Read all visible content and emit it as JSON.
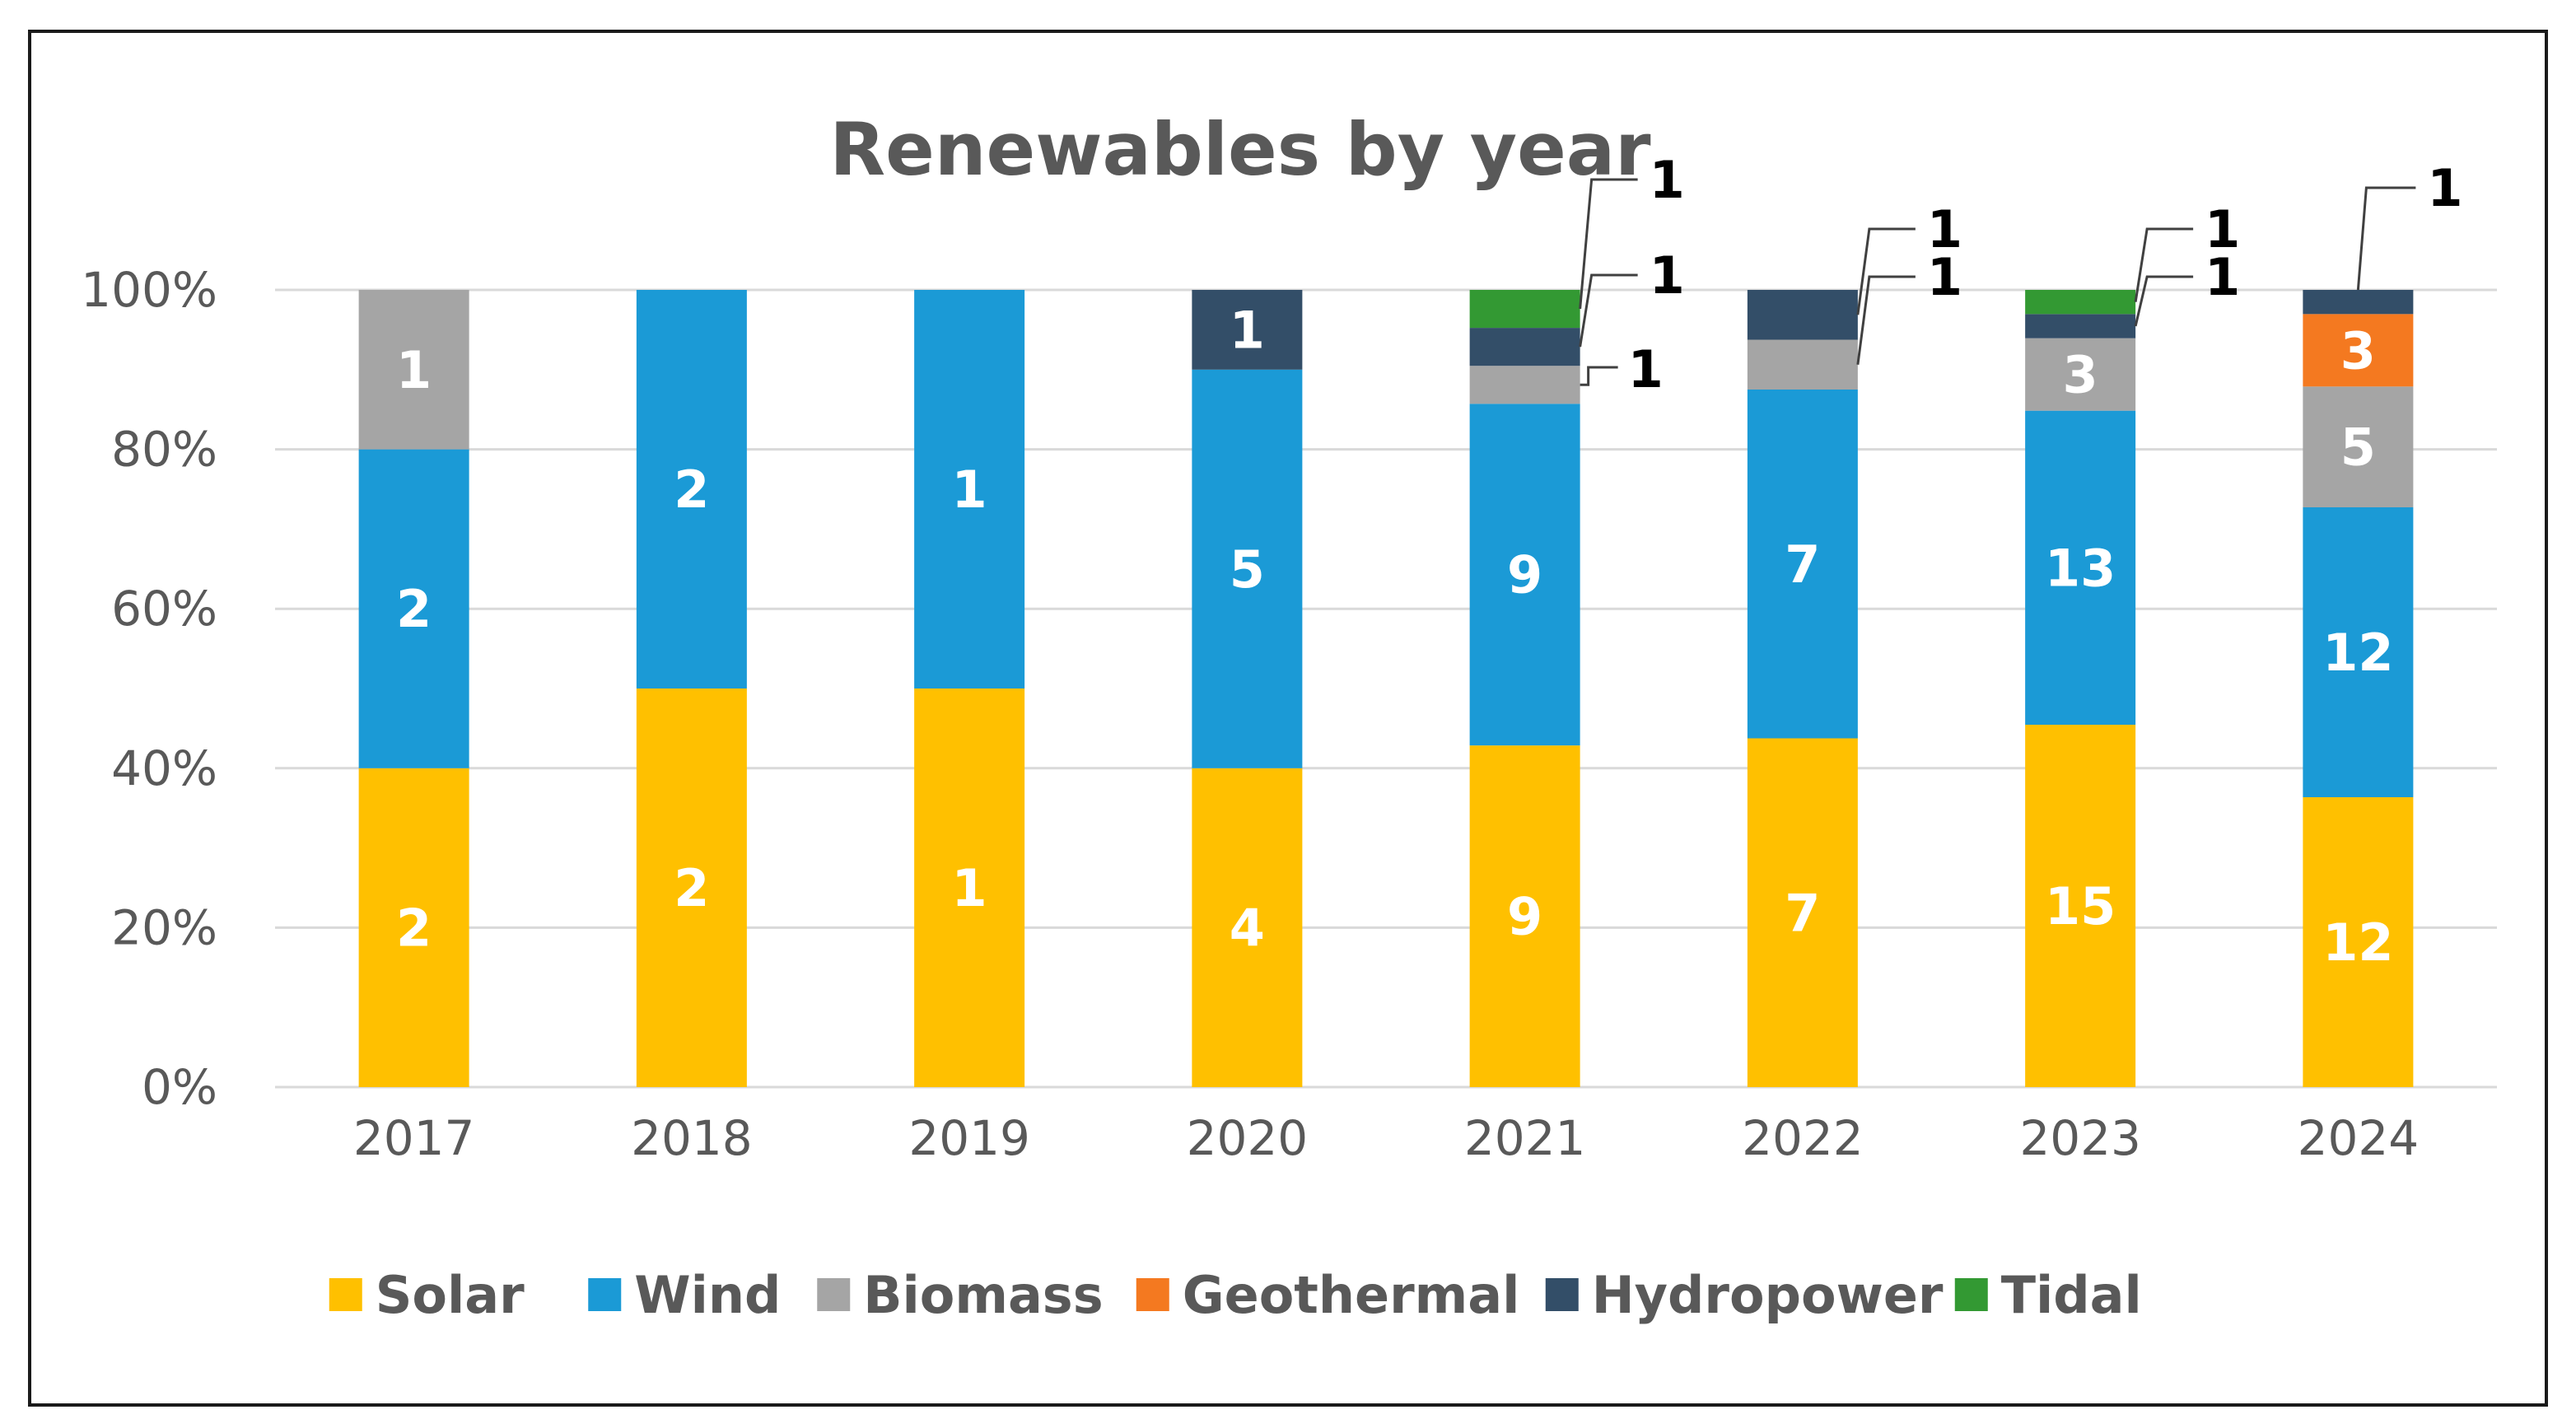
{
  "chart_data": {
    "type": "bar",
    "stacked": "percent",
    "title": "Renewables by year",
    "xlabel": "",
    "ylabel": "",
    "categories": [
      "2017",
      "2018",
      "2019",
      "2020",
      "2021",
      "2022",
      "2023",
      "2024"
    ],
    "ylim": [
      0,
      100
    ],
    "y_ticks": [
      "0%",
      "20%",
      "40%",
      "60%",
      "80%",
      "100%"
    ],
    "grid": true,
    "legend_position": "bottom",
    "series": [
      {
        "name": "Solar",
        "color": "#FFC000",
        "values": [
          2,
          2,
          1,
          4,
          9,
          7,
          15,
          12
        ]
      },
      {
        "name": "Wind",
        "color": "#1B9AD6",
        "values": [
          2,
          2,
          1,
          5,
          9,
          7,
          13,
          12
        ]
      },
      {
        "name": "Biomass",
        "color": "#A5A5A5",
        "values": [
          1,
          0,
          0,
          0,
          1,
          1,
          3,
          5
        ]
      },
      {
        "name": "Geothermal",
        "color": "#F47920",
        "values": [
          0,
          0,
          0,
          0,
          0,
          0,
          0,
          3
        ]
      },
      {
        "name": "Hydropower",
        "color": "#334E68",
        "values": [
          0,
          0,
          0,
          1,
          1,
          1,
          1,
          1
        ]
      },
      {
        "name": "Tidal",
        "color": "#339933",
        "values": [
          0,
          0,
          0,
          0,
          1,
          0,
          1,
          0
        ]
      }
    ],
    "data_labels": {
      "inside_color": "#FFFFFF",
      "callout_color": "#000000"
    }
  }
}
